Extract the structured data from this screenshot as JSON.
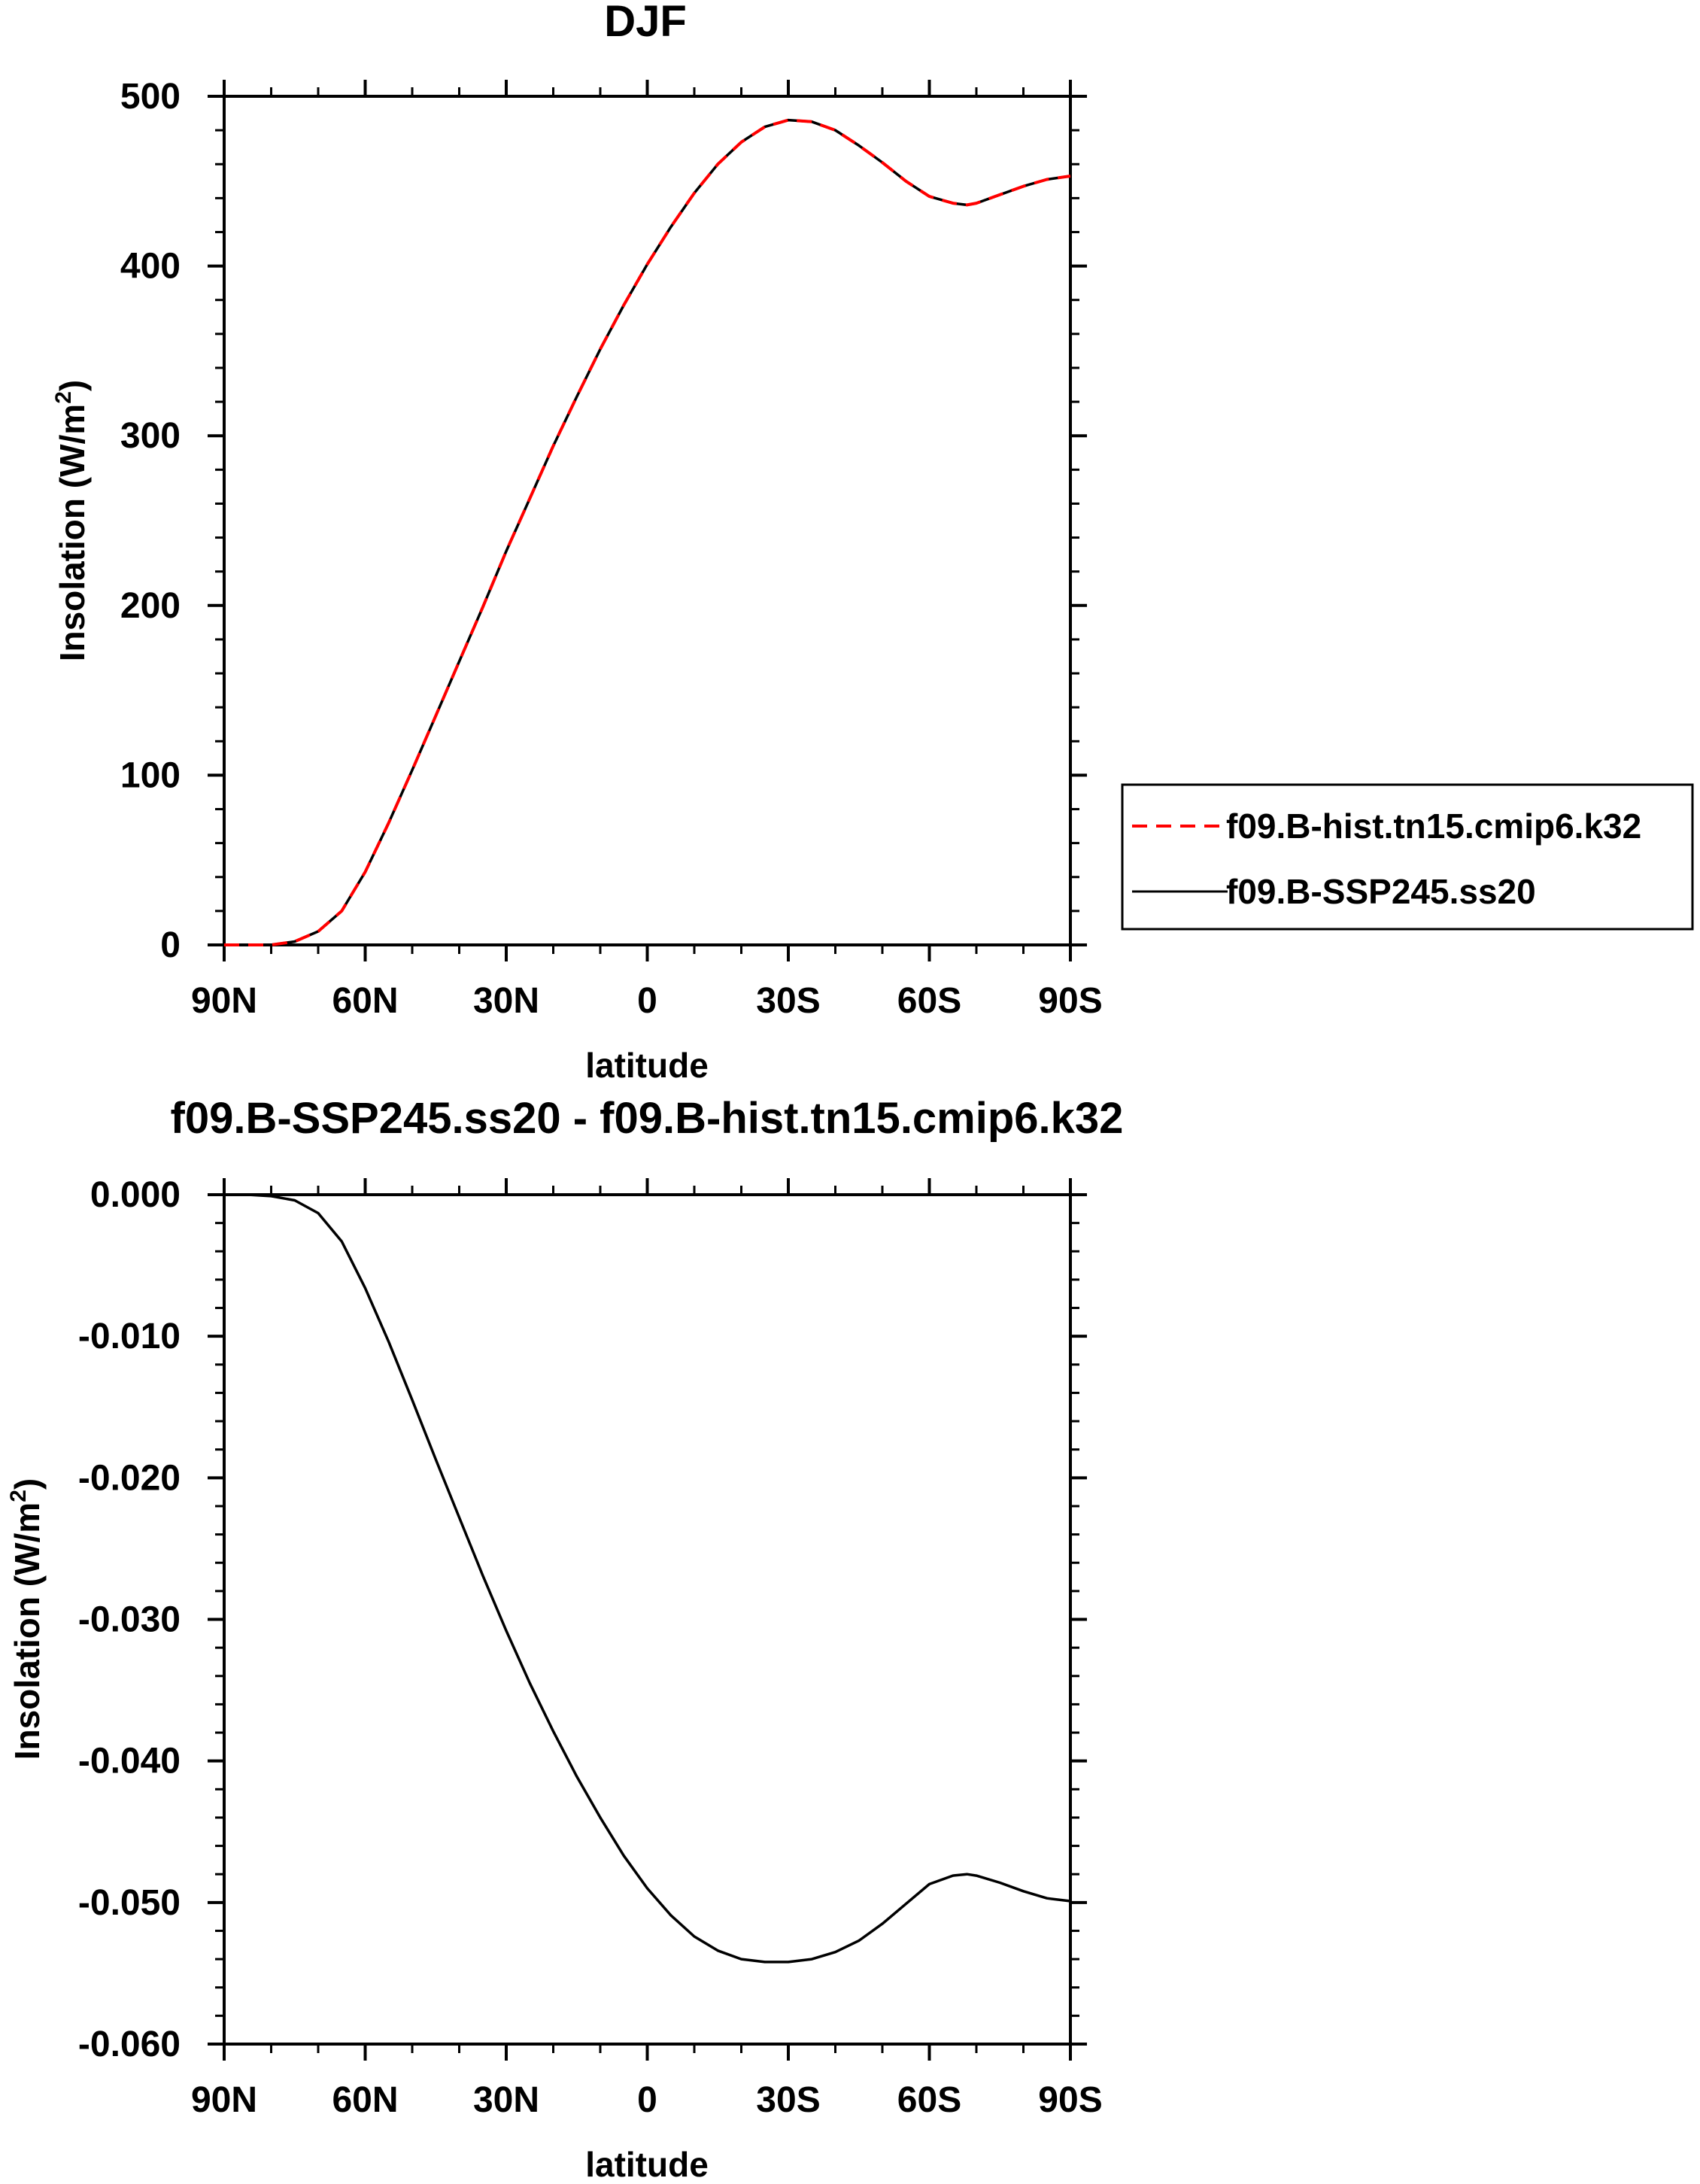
{
  "chart_data": [
    {
      "type": "line",
      "title": "DJF",
      "xlabel": "latitude",
      "ylabel": "Insolation (W/m",
      "ylabel_sup": "2",
      "ylabel_end": ")",
      "xlim": [
        90,
        -90
      ],
      "ylim": [
        0,
        500
      ],
      "xticks": [
        90,
        60,
        30,
        0,
        -30,
        -60,
        -90
      ],
      "xtick_labels": [
        "90N",
        "60N",
        "30N",
        "0",
        "30S",
        "60S",
        "90S"
      ],
      "yticks": [
        0,
        100,
        200,
        300,
        400,
        500
      ],
      "ytick_labels": [
        "0",
        "100",
        "200",
        "300",
        "400",
        "500"
      ],
      "grid": false,
      "legend_position": "right",
      "x": [
        90,
        85,
        80,
        75,
        70,
        65,
        60,
        55,
        50,
        45,
        40,
        35,
        30,
        25,
        20,
        15,
        10,
        5,
        0,
        -5,
        -10,
        -15,
        -20,
        -25,
        -30,
        -35,
        -40,
        -45,
        -50,
        -55,
        -60,
        -65,
        -68,
        -70,
        -75,
        -80,
        -85,
        -90
      ],
      "series": [
        {
          "name": "f09.B-hist.tn15.cmip6.k32",
          "color": "#ff0000",
          "dash": "dashed",
          "values": [
            0,
            0,
            0,
            2,
            8,
            20,
            43,
            72,
            103,
            135,
            167,
            199,
            232,
            263,
            294,
            323,
            351,
            377,
            401,
            423,
            443,
            460,
            473,
            482,
            486,
            485,
            480,
            471,
            461,
            450,
            441,
            437,
            436,
            437,
            442,
            447,
            451,
            453
          ]
        },
        {
          "name": "f09.B-SSP245.ss20",
          "color": "#000000",
          "dash": "solid",
          "values": [
            0,
            0,
            0,
            2,
            8,
            20,
            43,
            72,
            103,
            135,
            167,
            199,
            232,
            263,
            294,
            323,
            351,
            377,
            401,
            423,
            443,
            460,
            473,
            482,
            486,
            485,
            480,
            471,
            461,
            450,
            441,
            437,
            436,
            437,
            442,
            447,
            451,
            453
          ]
        }
      ]
    },
    {
      "type": "line",
      "title": "f09.B-SSP245.ss20 - f09.B-hist.tn15.cmip6.k32",
      "xlabel": "latitude",
      "ylabel": "Insolation (W/m",
      "ylabel_sup": "2",
      "ylabel_end": ")",
      "xlim": [
        90,
        -90
      ],
      "ylim": [
        -0.06,
        0.0
      ],
      "xticks": [
        90,
        60,
        30,
        0,
        -30,
        -60,
        -90
      ],
      "xtick_labels": [
        "90N",
        "60N",
        "30N",
        "0",
        "30S",
        "60S",
        "90S"
      ],
      "yticks": [
        0.0,
        -0.01,
        -0.02,
        -0.03,
        -0.04,
        -0.05,
        -0.06
      ],
      "ytick_labels": [
        "0.000",
        "-0.010",
        "-0.020",
        "-0.030",
        "-0.040",
        "-0.050",
        "-0.060"
      ],
      "grid": false,
      "x": [
        90,
        85,
        80,
        75,
        70,
        65,
        60,
        55,
        50,
        45,
        40,
        35,
        30,
        25,
        20,
        15,
        10,
        5,
        0,
        -5,
        -10,
        -15,
        -20,
        -25,
        -30,
        -35,
        -40,
        -45,
        -50,
        -55,
        -60,
        -65,
        -68,
        -70,
        -75,
        -80,
        -85,
        -90
      ],
      "series": [
        {
          "color": "#000000",
          "dash": "solid",
          "values": [
            0,
            0,
            -0.0001,
            -0.0004,
            -0.0013,
            -0.0033,
            -0.0066,
            -0.0104,
            -0.0145,
            -0.0187,
            -0.0228,
            -0.0269,
            -0.0308,
            -0.0345,
            -0.0379,
            -0.0411,
            -0.044,
            -0.0467,
            -0.049,
            -0.0509,
            -0.0524,
            -0.0534,
            -0.054,
            -0.0542,
            -0.0542,
            -0.054,
            -0.0535,
            -0.0527,
            -0.0515,
            -0.0501,
            -0.0487,
            -0.0481,
            -0.048,
            -0.0481,
            -0.0486,
            -0.0492,
            -0.0497,
            -0.0499
          ]
        }
      ]
    }
  ]
}
